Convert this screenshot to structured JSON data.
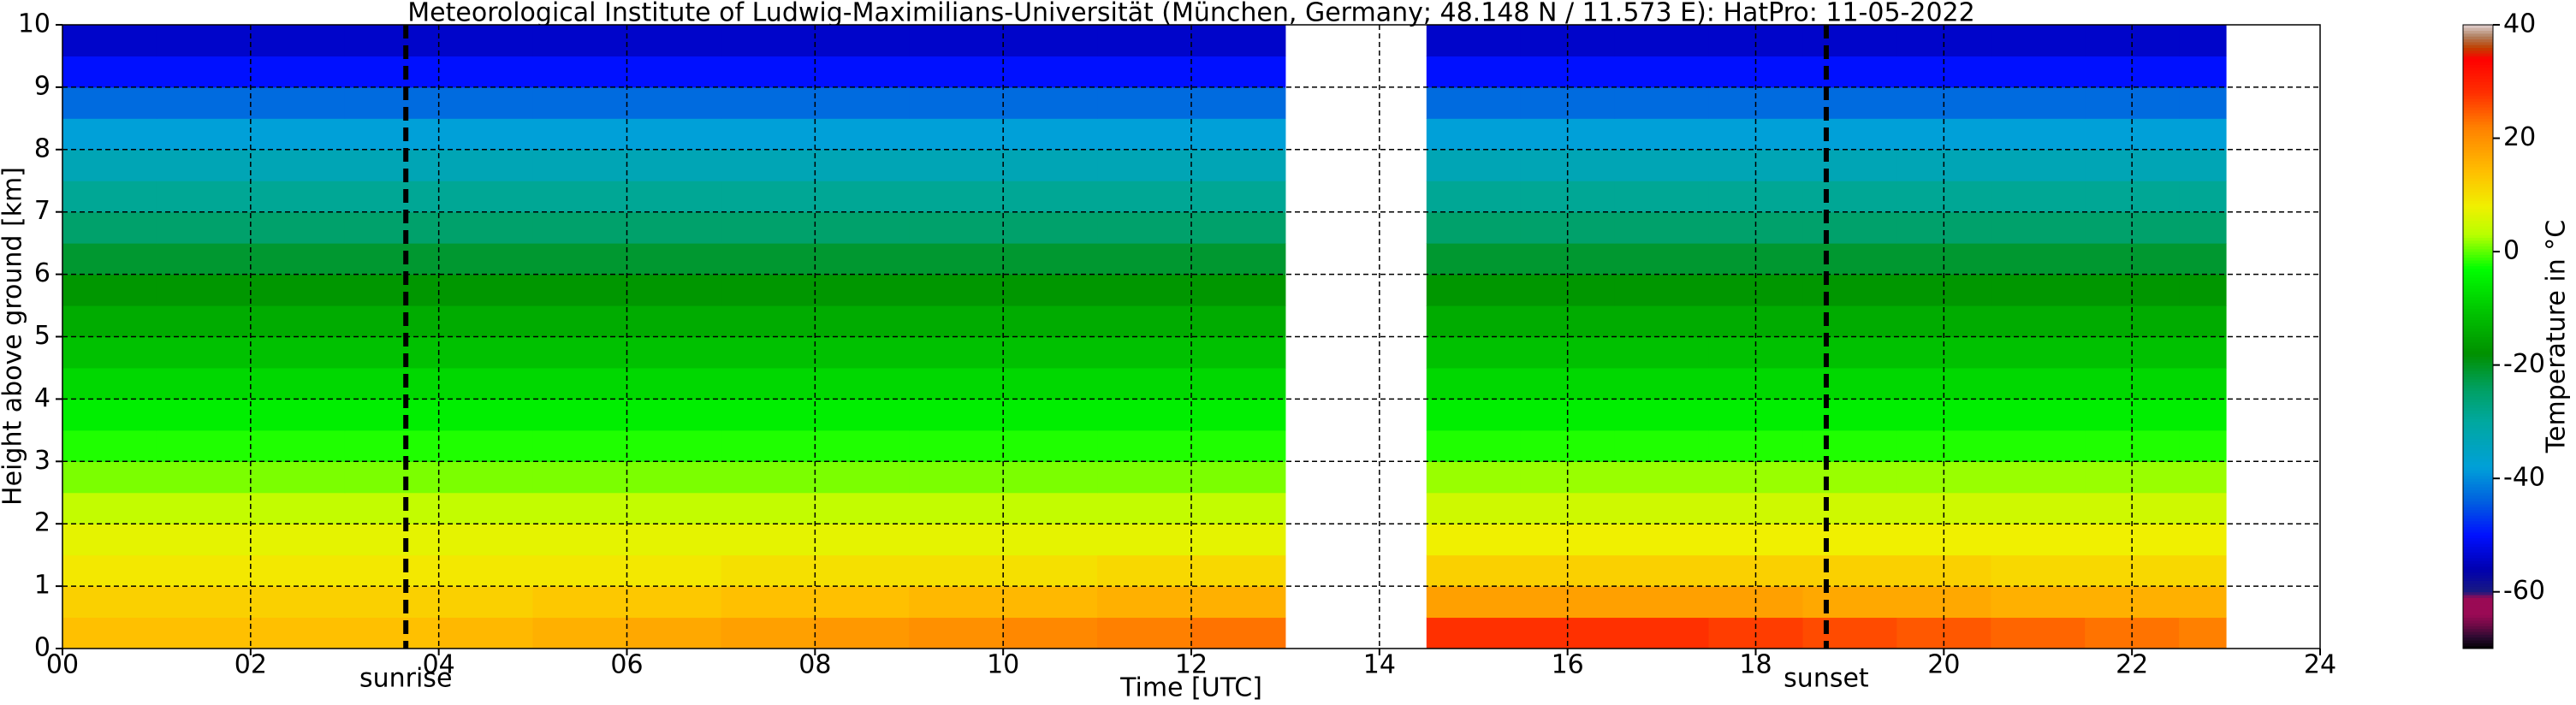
{
  "chart_data": {
    "type": "heatmap",
    "title": "Meteorological Institute of Ludwig-Maximilians-Universität (München, Germany; 48.148 N / 11.573 E):    HatPro: 11-05-2022",
    "x_label": "Time [UTC]",
    "y_label": "Height above ground [km]",
    "xlim": [
      0,
      24
    ],
    "ylim": [
      0,
      10
    ],
    "xticks": [
      {
        "value": 0,
        "label": "00"
      },
      {
        "value": 2,
        "label": "02"
      },
      {
        "value": 4,
        "label": "04"
      },
      {
        "value": 6,
        "label": "06"
      },
      {
        "value": 8,
        "label": "08"
      },
      10,
      12,
      14,
      16,
      18,
      20,
      22,
      24
    ],
    "yticks": [
      0,
      1,
      2,
      3,
      4,
      5,
      6,
      7,
      8,
      9,
      10
    ],
    "grid": true,
    "x": [
      0,
      1,
      2,
      3,
      4,
      5,
      6,
      7,
      8,
      9,
      10,
      11,
      12,
      13,
      14.5,
      15.5,
      16.5,
      17.5,
      18.5,
      19.5,
      20.5,
      21.5,
      22.5,
      23,
      24
    ],
    "y": [
      0,
      0.5,
      1,
      1.5,
      2,
      2.5,
      3,
      3.5,
      4,
      4.5,
      5,
      5.5,
      6,
      6.5,
      7,
      7.5,
      8,
      8.5,
      9,
      9.5,
      10
    ],
    "z": [
      [
        14,
        14,
        14,
        14,
        15,
        16,
        17,
        18,
        19,
        20,
        21,
        22,
        23,
        null,
        28,
        28,
        28,
        27,
        26,
        25,
        24,
        23,
        22,
        null
      ],
      [
        12,
        12,
        12,
        12,
        12,
        13,
        13,
        14,
        14,
        15,
        15,
        16,
        16,
        null,
        18,
        18,
        18,
        18,
        17,
        17,
        16,
        16,
        16,
        null
      ],
      [
        9,
        9,
        9,
        9,
        9,
        9,
        9,
        10,
        10,
        10,
        10,
        11,
        11,
        null,
        12,
        12,
        12,
        12,
        12,
        12,
        11,
        11,
        11,
        null
      ],
      [
        7,
        7,
        7,
        7,
        7,
        7,
        7,
        7,
        7,
        7,
        7,
        7,
        7,
        null,
        8,
        8,
        8,
        8,
        8,
        8,
        8,
        8,
        8,
        null
      ],
      [
        4,
        4,
        4,
        4,
        4,
        4,
        4,
        4,
        4,
        4,
        4,
        4,
        4,
        null,
        5,
        5,
        5,
        5,
        5,
        5,
        5,
        5,
        5,
        null
      ],
      [
        1,
        1,
        1,
        1,
        1,
        1,
        1,
        1,
        1,
        1,
        1,
        1,
        1,
        null,
        2,
        2,
        2,
        2,
        2,
        2,
        2,
        2,
        2,
        null
      ],
      [
        -2,
        -2,
        -2,
        -2,
        -2,
        -2,
        -2,
        -2,
        -2,
        -2,
        -2,
        -2,
        -2,
        null,
        -2,
        -2,
        -2,
        -2,
        -2,
        -2,
        -2,
        -2,
        -2,
        null
      ],
      [
        -5,
        -5,
        -5,
        -5,
        -5,
        -5,
        -5,
        -5,
        -5,
        -5,
        -5,
        -5,
        -5,
        null,
        -5,
        -5,
        -5,
        -5,
        -5,
        -5,
        -5,
        -5,
        -5,
        null
      ],
      [
        -8,
        -8,
        -8,
        -8,
        -8,
        -8,
        -8,
        -8,
        -8,
        -8,
        -8,
        -8,
        -8,
        null,
        -8,
        -8,
        -8,
        -8,
        -8,
        -8,
        -8,
        -8,
        -8,
        null
      ],
      [
        -11,
        -11,
        -11,
        -11,
        -11,
        -11,
        -11,
        -11,
        -11,
        -11,
        -11,
        -11,
        -11,
        null,
        -11,
        -11,
        -11,
        -11,
        -11,
        -11,
        -11,
        -11,
        -11,
        null
      ],
      [
        -14,
        -14,
        -14,
        -14,
        -14,
        -14,
        -14,
        -14,
        -14,
        -14,
        -14,
        -14,
        -14,
        null,
        -14,
        -14,
        -14,
        -14,
        -14,
        -14,
        -14,
        -14,
        -14,
        null
      ],
      [
        -17,
        -17,
        -17,
        -17,
        -17,
        -17,
        -17,
        -17,
        -17,
        -17,
        -17,
        -17,
        -17,
        null,
        -17,
        -17,
        -17,
        -17,
        -17,
        -17,
        -17,
        -17,
        -17,
        null
      ],
      [
        -21,
        -21,
        -21,
        -21,
        -21,
        -21,
        -21,
        -21,
        -21,
        -21,
        -21,
        -21,
        -21,
        null,
        -21,
        -21,
        -21,
        -21,
        -21,
        -21,
        -21,
        -21,
        -21,
        null
      ],
      [
        -25,
        -25,
        -25,
        -25,
        -25,
        -25,
        -25,
        -25,
        -25,
        -25,
        -25,
        -25,
        -25,
        null,
        -25,
        -25,
        -25,
        -25,
        -25,
        -25,
        -25,
        -25,
        -25,
        null
      ],
      [
        -29,
        -29,
        -29,
        -29,
        -29,
        -29,
        -29,
        -29,
        -29,
        -29,
        -29,
        -29,
        -29,
        null,
        -29,
        -29,
        -29,
        -29,
        -29,
        -29,
        -29,
        -29,
        -29,
        null
      ],
      [
        -33,
        -33,
        -33,
        -33,
        -33,
        -33,
        -33,
        -33,
        -33,
        -33,
        -33,
        -33,
        -33,
        null,
        -33,
        -33,
        -33,
        -33,
        -33,
        -33,
        -33,
        -33,
        -33,
        null
      ],
      [
        -38,
        -38,
        -38,
        -38,
        -38,
        -38,
        -38,
        -38,
        -38,
        -38,
        -38,
        -38,
        -38,
        null,
        -38,
        -38,
        -38,
        -38,
        -38,
        -38,
        -38,
        -38,
        -38,
        null
      ],
      [
        -43,
        -43,
        -43,
        -43,
        -43,
        -43,
        -43,
        -43,
        -43,
        -43,
        -43,
        -43,
        -43,
        null,
        -43,
        -43,
        -43,
        -43,
        -43,
        -43,
        -43,
        -43,
        -43,
        null
      ],
      [
        -50,
        -50,
        -50,
        -50,
        -50,
        -50,
        -50,
        -50,
        -50,
        -50,
        -50,
        -50,
        -50,
        null,
        -50,
        -50,
        -50,
        -50,
        -50,
        -50,
        -50,
        -50,
        -50,
        null
      ],
      [
        -54,
        -54,
        -54,
        -54,
        -54,
        -54,
        -54,
        -54,
        -54,
        -54,
        -54,
        -54,
        -54,
        null,
        -54,
        -54,
        -54,
        -54,
        -54,
        -54,
        -54,
        -54,
        -54,
        null
      ]
    ],
    "annotations": [
      {
        "x": 3.65,
        "label": "sunrise"
      },
      {
        "x": 18.75,
        "label": "sunset"
      }
    ],
    "colorbar": {
      "label": "Temperature in $^\\circ$C",
      "lim": [
        -70,
        40
      ],
      "ticks": [
        -60,
        -40,
        -20,
        0,
        20,
        40
      ],
      "stops": [
        [
          -70,
          "#000000"
        ],
        [
          -68,
          "#2a0a30"
        ],
        [
          -66,
          "#6a0a45"
        ],
        [
          -64,
          "#9a0a55"
        ],
        [
          -61,
          "#9a0a55"
        ],
        [
          -60,
          "#1a1a80"
        ],
        [
          -56,
          "#0000b0"
        ],
        [
          -50,
          "#0010ff"
        ],
        [
          -44,
          "#0060e0"
        ],
        [
          -38,
          "#00a0d8"
        ],
        [
          -30,
          "#00a8a0"
        ],
        [
          -24,
          "#00a060"
        ],
        [
          -18,
          "#009000"
        ],
        [
          -10,
          "#00c800"
        ],
        [
          -3,
          "#00ff00"
        ],
        [
          3,
          "#b8ff00"
        ],
        [
          8,
          "#f0f000"
        ],
        [
          14,
          "#ffc000"
        ],
        [
          22,
          "#ff8000"
        ],
        [
          28,
          "#ff3000"
        ],
        [
          34,
          "#ff0000"
        ],
        [
          36,
          "#c04000"
        ],
        [
          38,
          "#b08060"
        ],
        [
          40,
          "#e0d0d0"
        ]
      ]
    }
  }
}
